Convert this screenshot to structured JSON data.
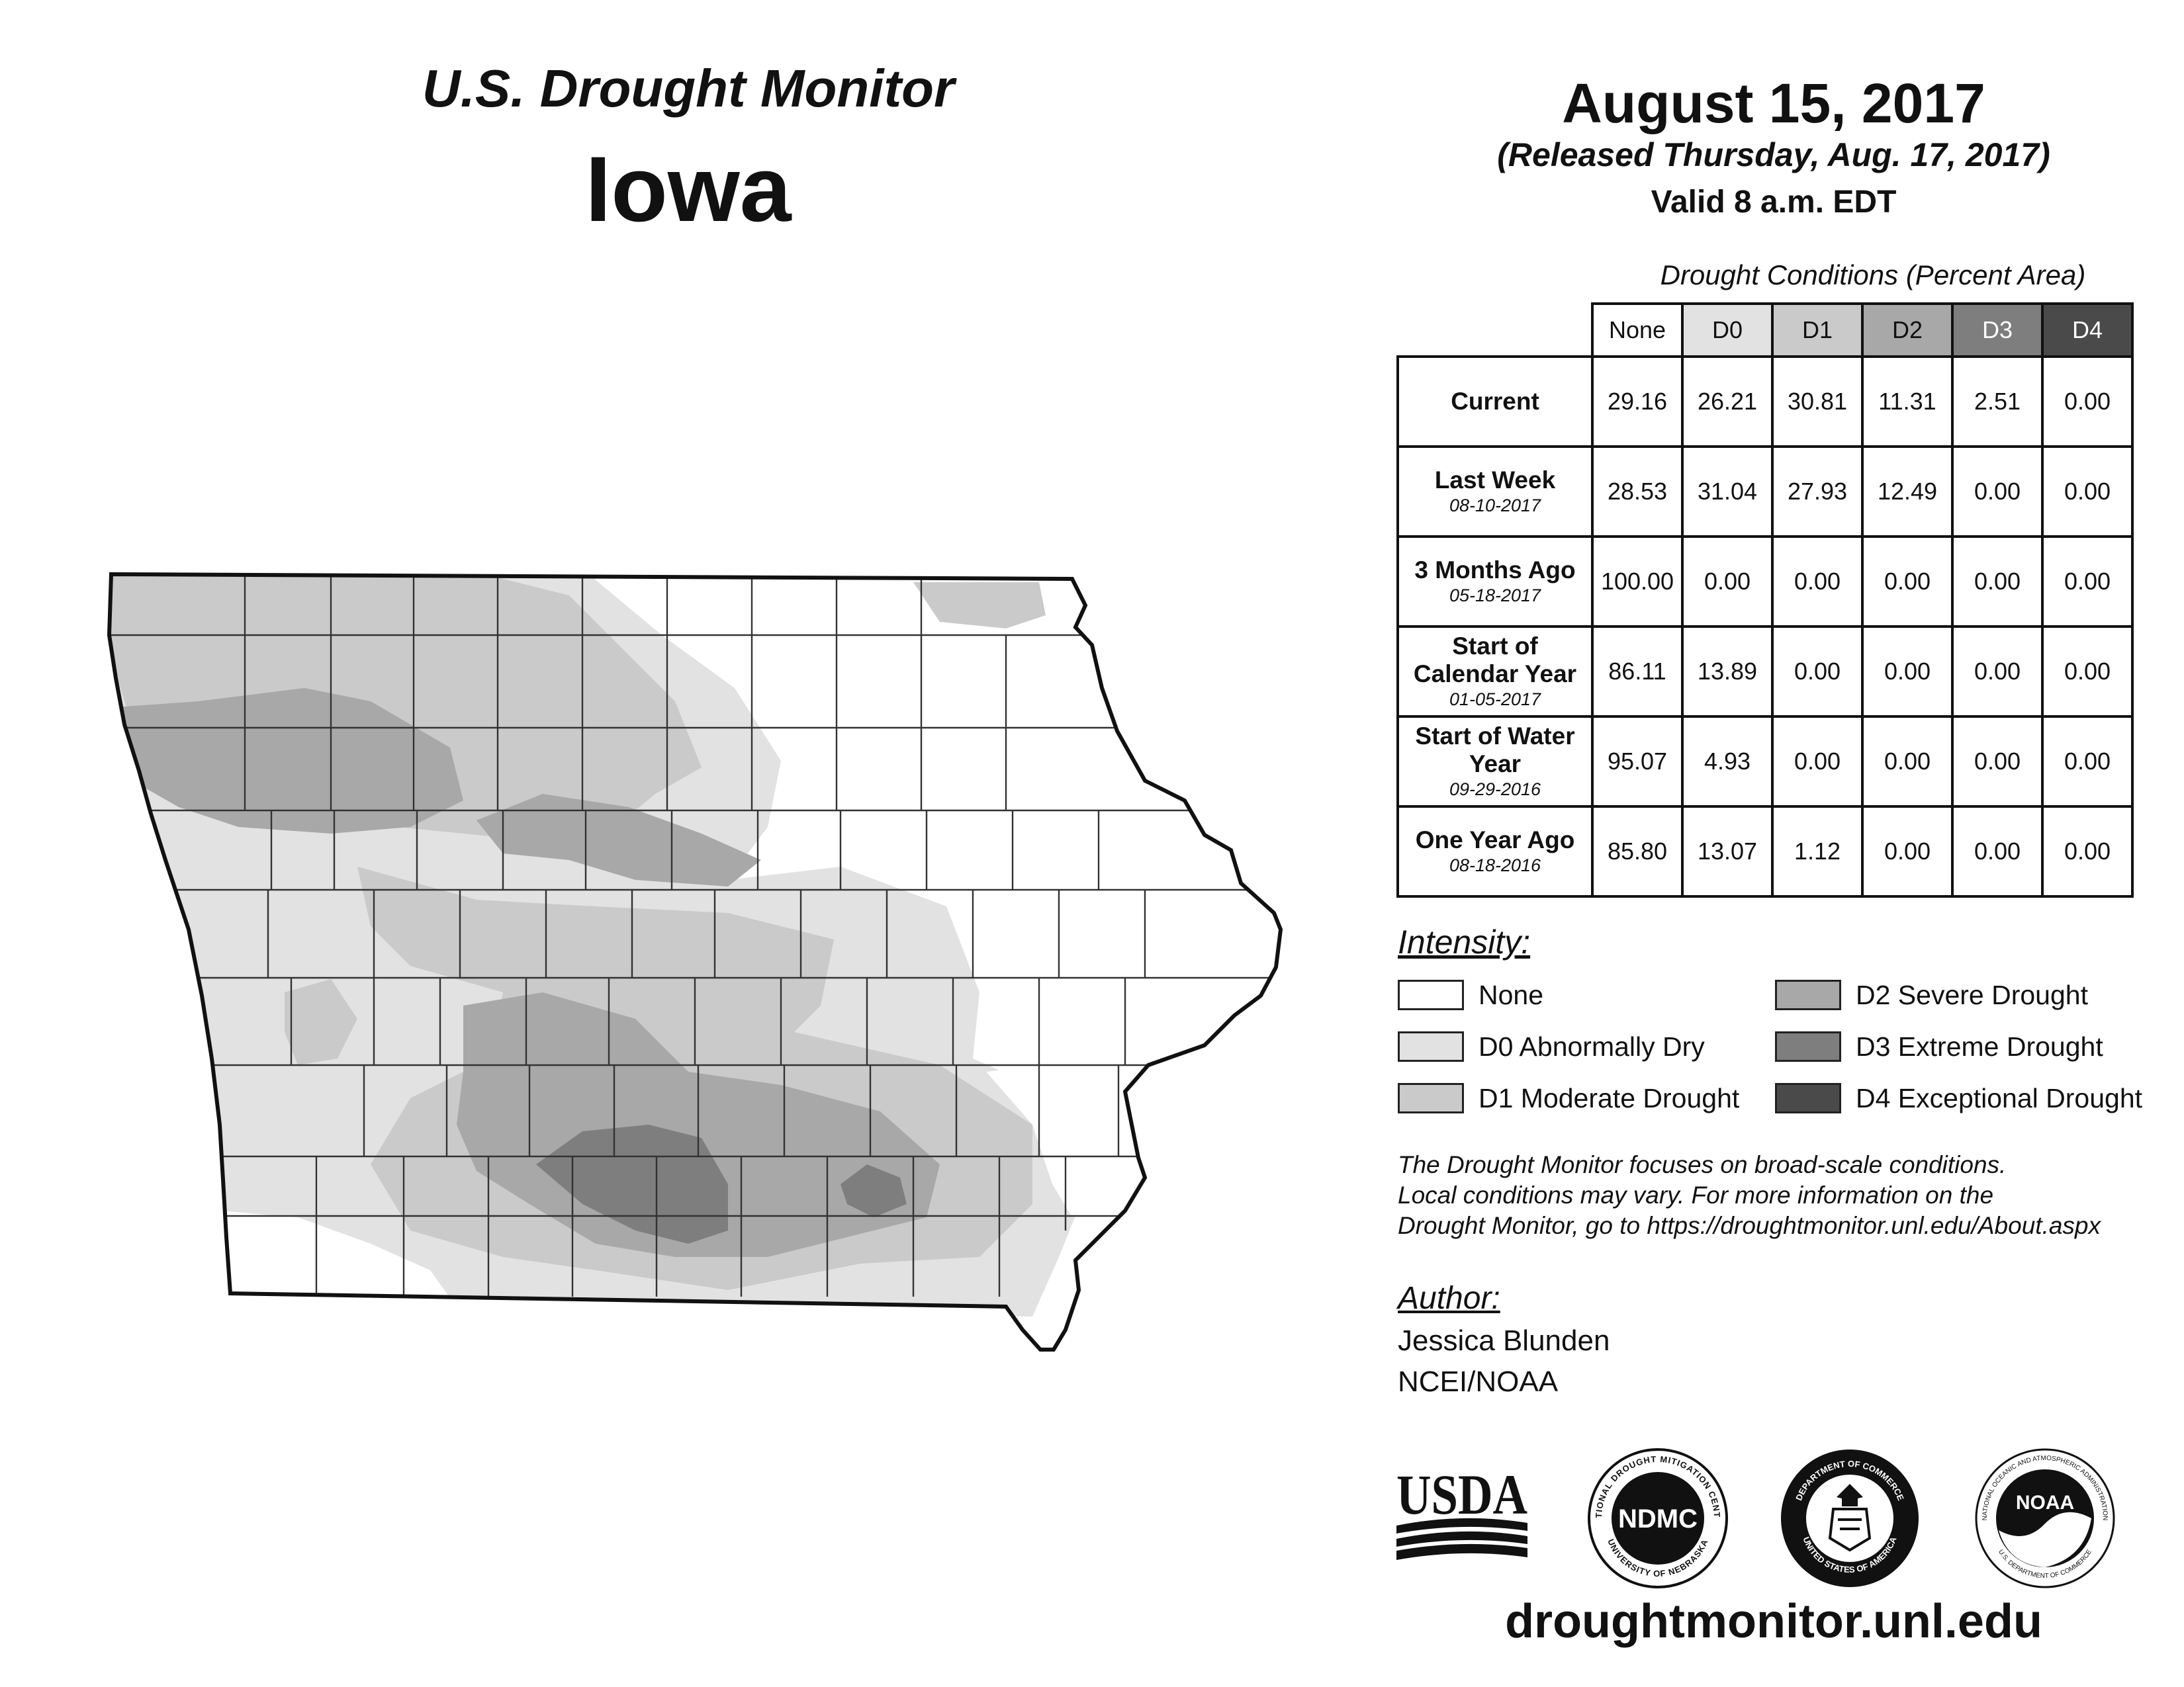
{
  "header": {
    "title_top": "U.S. Drought Monitor",
    "state": "Iowa",
    "date": "August 15, 2017",
    "released": "(Released Thursday, Aug. 17, 2017)",
    "valid": "Valid 8 a.m. EDT"
  },
  "table": {
    "caption": "Drought Conditions (Percent Area)",
    "columns": [
      "None",
      "D0",
      "D1",
      "D2",
      "D3",
      "D4"
    ],
    "column_colors": [
      "#ffffff",
      "#e2e2e2",
      "#cacaca",
      "#a8a8a8",
      "#7e7e7e",
      "#4a4a4a"
    ],
    "rows": [
      {
        "label": "Current",
        "date": "",
        "values": [
          "29.16",
          "26.21",
          "30.81",
          "11.31",
          "2.51",
          "0.00"
        ]
      },
      {
        "label": "Last Week",
        "date": "08-10-2017",
        "values": [
          "28.53",
          "31.04",
          "27.93",
          "12.49",
          "0.00",
          "0.00"
        ]
      },
      {
        "label": "3 Months Ago",
        "date": "05-18-2017",
        "values": [
          "100.00",
          "0.00",
          "0.00",
          "0.00",
          "0.00",
          "0.00"
        ]
      },
      {
        "label": "Start of Calendar Year",
        "date": "01-05-2017",
        "values": [
          "86.11",
          "13.89",
          "0.00",
          "0.00",
          "0.00",
          "0.00"
        ]
      },
      {
        "label": "Start of Water Year",
        "date": "09-29-2016",
        "values": [
          "95.07",
          "4.93",
          "0.00",
          "0.00",
          "0.00",
          "0.00"
        ]
      },
      {
        "label": "One Year Ago",
        "date": "08-18-2016",
        "values": [
          "85.80",
          "13.07",
          "1.12",
          "0.00",
          "0.00",
          "0.00"
        ]
      }
    ]
  },
  "legend": {
    "heading": "Intensity:",
    "items": [
      {
        "label": "None",
        "color": "#ffffff"
      },
      {
        "label": "D0 Abnormally Dry",
        "color": "#e2e2e2"
      },
      {
        "label": "D1 Moderate Drought",
        "color": "#cacaca"
      },
      {
        "label": "D2 Severe Drought",
        "color": "#a8a8a8"
      },
      {
        "label": "D3 Extreme Drought",
        "color": "#7e7e7e"
      },
      {
        "label": "D4 Exceptional Drought",
        "color": "#4a4a4a"
      }
    ]
  },
  "note": {
    "line1": "The Drought Monitor focuses on broad-scale conditions.",
    "line2": "Local conditions may vary. For more information on the",
    "line3": "Drought Monitor, go to https://droughtmonitor.unl.edu/About.aspx"
  },
  "author": {
    "heading": "Author:",
    "name": "Jessica Blunden",
    "org": "NCEI/NOAA"
  },
  "logos": {
    "usda": "USDA",
    "ndmc": "NDMC",
    "ndmc_ring_top": "NATIONAL DROUGHT MITIGATION CENTER",
    "ndmc_ring_bottom": "UNIVERSITY OF NEBRASKA",
    "doc_ring_top": "DEPARTMENT OF COMMERCE",
    "doc_ring_bottom": "UNITED STATES OF AMERICA",
    "noaa": "NOAA",
    "noaa_ring_top": "NATIONAL OCEANIC AND ATMOSPHERIC ADMINISTRATION",
    "noaa_ring_bottom": "U.S. DEPARTMENT OF COMMERCE"
  },
  "website": "droughtmonitor.unl.edu",
  "map": {
    "state_outline_icon": "iowa-state-map",
    "fill_color": "#ffffff",
    "line_color": "#111111"
  }
}
